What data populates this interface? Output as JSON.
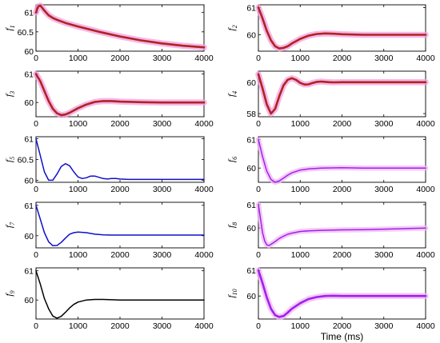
{
  "chart_data": [
    {
      "type": "line",
      "ylabel": "f",
      "ysub": "1",
      "xlim": [
        0,
        4000
      ],
      "ylim": [
        60,
        61.2
      ],
      "yticks": [
        "60",
        "60.5",
        "61"
      ],
      "ytick_values": [
        60,
        60.5,
        61
      ],
      "xticks": [
        "0",
        "1000",
        "2000",
        "3000",
        "4000"
      ],
      "xlabel": "",
      "color": "#b22222",
      "glow": "#f0a0e0",
      "width": 2.6,
      "x": [
        0,
        50,
        100,
        150,
        200,
        300,
        400,
        500,
        700,
        1000,
        1500,
        2000,
        2500,
        3000,
        3500,
        4000
      ],
      "y": [
        61.0,
        61.15,
        61.18,
        61.12,
        61.05,
        60.93,
        60.86,
        60.81,
        60.73,
        60.64,
        60.5,
        60.38,
        60.28,
        60.2,
        60.14,
        60.1
      ]
    },
    {
      "type": "line",
      "ylabel": "f",
      "ysub": "2",
      "xlim": [
        0,
        4000
      ],
      "ylim": [
        59.4,
        61.1
      ],
      "yticks": [
        "60",
        "61"
      ],
      "ytick_values": [
        60,
        61
      ],
      "xticks": [
        "0",
        "1000",
        "2000",
        "3000",
        "4000"
      ],
      "xlabel": "",
      "color": "#b22222",
      "glow": "#f0a0e0",
      "width": 2.6,
      "x": [
        0,
        100,
        200,
        300,
        400,
        500,
        600,
        700,
        800,
        1000,
        1200,
        1400,
        1600,
        1800,
        2000,
        2500,
        3000,
        3500,
        4000
      ],
      "y": [
        61.0,
        60.6,
        60.15,
        59.8,
        59.58,
        59.5,
        59.52,
        59.58,
        59.68,
        59.85,
        59.97,
        60.03,
        60.05,
        60.04,
        60.02,
        60.0,
        60.0,
        60.0,
        60.0
      ]
    },
    {
      "type": "line",
      "ylabel": "f",
      "ysub": "3",
      "xlim": [
        0,
        4000
      ],
      "ylim": [
        59.5,
        61.1
      ],
      "yticks": [
        "60",
        "61"
      ],
      "ytick_values": [
        60,
        61
      ],
      "xticks": [
        "0",
        "1000",
        "2000",
        "3000",
        "4000"
      ],
      "xlabel": "",
      "color": "#b22222",
      "glow": "#f0a0e0",
      "width": 2.6,
      "x": [
        0,
        100,
        200,
        300,
        400,
        500,
        600,
        700,
        800,
        1000,
        1200,
        1400,
        1600,
        1800,
        2000,
        2500,
        3000,
        3500,
        4000
      ],
      "y": [
        61.0,
        60.75,
        60.4,
        60.05,
        59.78,
        59.62,
        59.56,
        59.58,
        59.64,
        59.8,
        59.93,
        60.02,
        60.05,
        60.05,
        60.03,
        60.01,
        60.0,
        60.0,
        60.0
      ]
    },
    {
      "type": "line",
      "ylabel": "f",
      "ysub": "4",
      "xlim": [
        0,
        4000
      ],
      "ylim": [
        57.8,
        60.7
      ],
      "yticks": [
        "58",
        "60"
      ],
      "ytick_values": [
        58,
        60
      ],
      "xticks": [
        "0",
        "1000",
        "2000",
        "3000",
        "4000"
      ],
      "xlabel": "",
      "color": "#b22222",
      "glow": "#f0a0e0",
      "width": 2.6,
      "x": [
        0,
        100,
        200,
        300,
        400,
        500,
        600,
        700,
        800,
        900,
        1000,
        1100,
        1200,
        1300,
        1400,
        1500,
        1600,
        1700,
        1800,
        2000,
        2500,
        3000,
        3500,
        4000
      ],
      "y": [
        60.5,
        59.6,
        58.6,
        58.0,
        58.3,
        59.1,
        59.8,
        60.15,
        60.25,
        60.15,
        59.95,
        59.85,
        59.86,
        59.95,
        60.02,
        60.04,
        60.02,
        60.0,
        59.99,
        60.0,
        60.0,
        60.0,
        60.0,
        60.0
      ]
    },
    {
      "type": "line",
      "ylabel": "f",
      "ysub": "5",
      "xlim": [
        0,
        4000
      ],
      "ylim": [
        59.95,
        61.05
      ],
      "yticks": [
        "60",
        "60.5",
        "61"
      ],
      "ytick_values": [
        60,
        60.5,
        61
      ],
      "xticks": [
        "0",
        "1000",
        "2000",
        "3000",
        "4000"
      ],
      "xlabel": "",
      "color": "#1010c8",
      "glow": "",
      "width": 1.5,
      "x": [
        0,
        100,
        200,
        300,
        400,
        500,
        600,
        700,
        800,
        900,
        1000,
        1100,
        1200,
        1300,
        1400,
        1500,
        1600,
        1700,
        1800,
        1900,
        2000,
        2200,
        2500,
        3000,
        3500,
        4000
      ],
      "y": [
        61.0,
        60.6,
        60.2,
        60.0,
        60.0,
        60.15,
        60.33,
        60.4,
        60.35,
        60.2,
        60.08,
        60.04,
        60.06,
        60.1,
        60.1,
        60.07,
        60.04,
        60.03,
        60.04,
        60.04,
        60.03,
        60.02,
        60.02,
        60.02,
        60.02,
        60.02
      ]
    },
    {
      "type": "line",
      "ylabel": "f",
      "ysub": "6",
      "xlim": [
        0,
        4000
      ],
      "ylim": [
        59.5,
        61.1
      ],
      "yticks": [
        "60",
        "61"
      ],
      "ytick_values": [
        60,
        61
      ],
      "xticks": [
        "0",
        "1000",
        "2000",
        "3000",
        "4000"
      ],
      "xlabel": "",
      "color": "#a020f0",
      "glow": "#f0b8f0",
      "width": 1.5,
      "x": [
        0,
        100,
        200,
        300,
        400,
        500,
        600,
        700,
        800,
        1000,
        1200,
        1500,
        2000,
        2500,
        3000,
        3500,
        4000
      ],
      "y": [
        61.0,
        60.4,
        59.9,
        59.6,
        59.5,
        59.55,
        59.65,
        59.75,
        59.83,
        59.93,
        59.97,
        60.0,
        60.01,
        60.0,
        60.0,
        60.0,
        60.0
      ]
    },
    {
      "type": "line",
      "ylabel": "f",
      "ysub": "7",
      "xlim": [
        0,
        4000
      ],
      "ylim": [
        59.6,
        61.1
      ],
      "yticks": [
        "60",
        "61"
      ],
      "ytick_values": [
        60,
        61
      ],
      "xticks": [
        "0",
        "1000",
        "2000",
        "3000",
        "4000"
      ],
      "xlabel": "",
      "color": "#1010c8",
      "glow": "",
      "width": 1.5,
      "x": [
        0,
        100,
        200,
        300,
        400,
        500,
        600,
        700,
        800,
        900,
        1000,
        1200,
        1400,
        1600,
        1800,
        2000,
        2500,
        3000,
        3500,
        4000
      ],
      "y": [
        61.0,
        60.55,
        60.1,
        59.8,
        59.67,
        59.68,
        59.78,
        59.92,
        60.05,
        60.1,
        60.12,
        60.1,
        60.05,
        60.03,
        60.02,
        60.02,
        60.02,
        60.02,
        60.02,
        60.02
      ]
    },
    {
      "type": "line",
      "ylabel": "f",
      "ysub": "8",
      "xlim": [
        0,
        4000
      ],
      "ylim": [
        59.15,
        61.1
      ],
      "yticks": [
        "60",
        "61"
      ],
      "ytick_values": [
        60,
        61
      ],
      "xticks": [
        "0",
        "1000",
        "2000",
        "3000",
        "4000"
      ],
      "xlabel": "",
      "color": "#a020f0",
      "glow": "#f0b8f0",
      "width": 1.5,
      "x": [
        0,
        50,
        100,
        150,
        200,
        250,
        300,
        400,
        500,
        600,
        700,
        800,
        1000,
        1200,
        1500,
        2000,
        2500,
        3000,
        3500,
        4000
      ],
      "y": [
        61.0,
        60.4,
        59.8,
        59.45,
        59.28,
        59.25,
        59.3,
        59.42,
        59.55,
        59.65,
        59.73,
        59.78,
        59.85,
        59.88,
        59.9,
        59.92,
        59.93,
        59.95,
        59.97,
        60.0
      ]
    },
    {
      "type": "line",
      "ylabel": "f",
      "ysub": "9",
      "xlim": [
        0,
        4000
      ],
      "ylim": [
        59.35,
        61.1
      ],
      "yticks": [
        "60",
        "61"
      ],
      "ytick_values": [
        60,
        61
      ],
      "xticks": [
        "0",
        "1000",
        "2000",
        "3000",
        "4000"
      ],
      "xlabel": "",
      "color": "#000000",
      "glow": "",
      "width": 1.5,
      "x": [
        0,
        100,
        200,
        300,
        400,
        500,
        600,
        700,
        800,
        900,
        1000,
        1200,
        1400,
        1600,
        1800,
        2000,
        2500,
        3000,
        3500,
        4000
      ],
      "y": [
        61.0,
        60.55,
        60.05,
        59.7,
        59.45,
        59.38,
        59.44,
        59.58,
        59.73,
        59.85,
        59.93,
        60.0,
        60.02,
        60.02,
        60.01,
        60.0,
        60.0,
        60.0,
        60.0,
        60.0
      ]
    },
    {
      "type": "line",
      "ylabel": "f",
      "ysub": "10",
      "xlim": [
        0,
        4000
      ],
      "ylim": [
        59.1,
        61.1
      ],
      "yticks": [
        "60",
        "61"
      ],
      "ytick_values": [
        60,
        61
      ],
      "xticks": [
        "0",
        "1000",
        "2000",
        "3000",
        "4000"
      ],
      "xlabel": "Time (ms)",
      "color": "#a020f0",
      "glow": "#f0b8f0",
      "width": 2.6,
      "x": [
        0,
        100,
        200,
        300,
        400,
        500,
        600,
        700,
        800,
        1000,
        1200,
        1400,
        1600,
        1800,
        2000,
        2500,
        3000,
        3500,
        4000
      ],
      "y": [
        61.0,
        60.5,
        59.95,
        59.5,
        59.25,
        59.18,
        59.22,
        59.35,
        59.5,
        59.72,
        59.88,
        59.96,
        60.0,
        60.01,
        60.0,
        60.0,
        60.0,
        60.0,
        60.0
      ]
    }
  ],
  "shared_xlabel": "Time (ms)"
}
